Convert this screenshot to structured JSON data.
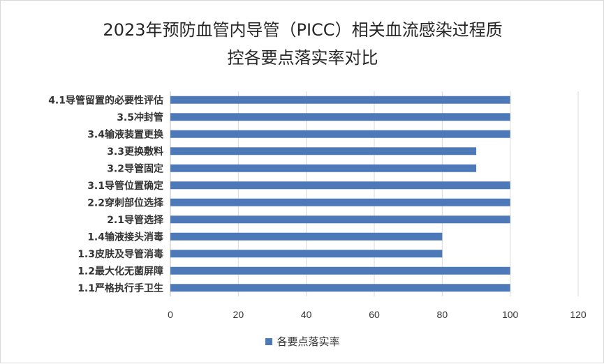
{
  "chart_data": {
    "type": "bar",
    "orientation": "horizontal",
    "title_lines": [
      "2023年预防血管内导管（PICC）相关血流感染过程质",
      "控各要点落实率对比"
    ],
    "categories": [
      "4.1导管留置的必要性评估",
      "3.5冲封管",
      "3.4输液装置更换",
      "3.3更换敷料",
      "3.2导管固定",
      "3.1导管位置确定",
      "2.2穿刺部位选择",
      "2.1导管选择",
      "1.4输液接头消毒",
      "1.3皮肤及导管消毒",
      "1.2最大化无菌屏障",
      "1.1严格执行手卫生"
    ],
    "series": [
      {
        "name": "各要点落实率",
        "color": "#4e79b8",
        "values": [
          100,
          100,
          100,
          90,
          90,
          100,
          100,
          100,
          80,
          80,
          100,
          100
        ]
      }
    ],
    "xlim": [
      0,
      120
    ],
    "xticks": [
      "0",
      "20",
      "40",
      "60",
      "80",
      "100",
      "120"
    ],
    "grid": true,
    "legend_position": "bottom"
  }
}
